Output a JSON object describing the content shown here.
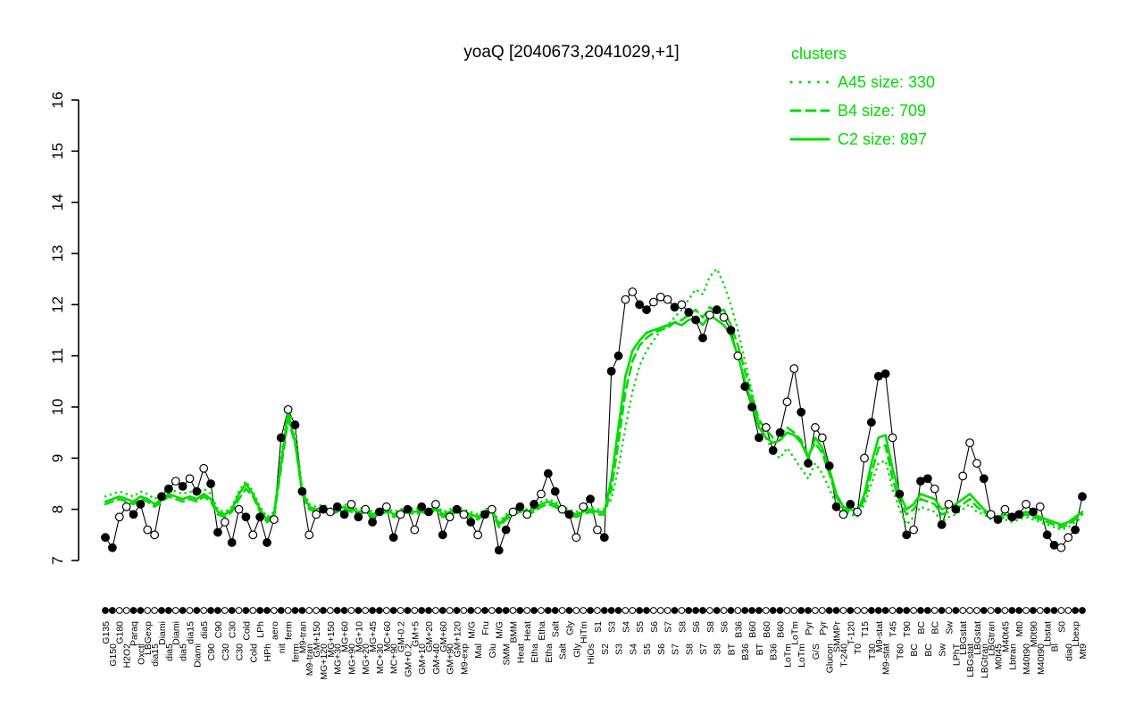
{
  "title": "yoaQ [2040673,2041029,+1]",
  "legend": {
    "title": "clusters",
    "color": "#00dc00",
    "items": [
      {
        "label": "A45 size: 330",
        "style": "dotted"
      },
      {
        "label": "B4 size: 709",
        "style": "dashed"
      },
      {
        "label": "C2 size: 897",
        "style": "solid"
      }
    ]
  },
  "chart_data": {
    "type": "line",
    "title": "yoaQ [2040673,2041029,+1]",
    "xlabel": "",
    "ylabel": "",
    "ylim": [
      7,
      16
    ],
    "yticks": [
      7,
      8,
      9,
      10,
      11,
      12,
      13,
      14,
      15,
      16
    ],
    "grid": false,
    "legend_position": "top-right",
    "colors": {
      "cluster": "#00dc00",
      "points": "#000000"
    },
    "categories": [
      "G135",
      "G150",
      "G180",
      "H2O2",
      "Paraq",
      "Oxctl",
      "LBGexp",
      "dia15",
      "Diami",
      "dia5",
      "Diami",
      "dia5",
      "dia15",
      "Diami",
      "dia5",
      "C90",
      "C90",
      "C30",
      "C30",
      "C30",
      "Cold",
      "Cold",
      "LPh",
      "HPh",
      "aero",
      "nit",
      "ferm",
      "ferm",
      "M9-tran",
      "M9-tran",
      "GM+150",
      "MG+120",
      "MG+150",
      "MG+30",
      "MG+60",
      "MG+90",
      "MG+10",
      "MG+20",
      "MG+45",
      "MC+30",
      "MC+60",
      "MC+90",
      "GM-0.2",
      "GM+0.2",
      "GM+5",
      "GM+10",
      "GM+20",
      "GM+40",
      "GM+60",
      "GM+90",
      "GM+120",
      "M9-exp",
      "M/G",
      "Mal",
      "Fru",
      "Glu",
      "M/G",
      "SMM",
      "BMM",
      "Heat",
      "Heat",
      "Etha",
      "Etha",
      "Etha",
      "Salt",
      "Salt",
      "Gly",
      "Gly",
      "HiTm",
      "HiOs",
      "S1",
      "S2",
      "S3",
      "S3",
      "S4",
      "S4",
      "S5",
      "S5",
      "S6",
      "S6",
      "S7",
      "S7",
      "S8",
      "S8",
      "S6",
      "S7",
      "S8",
      "S8",
      "S6",
      "BT",
      "B36",
      "B36",
      "B60",
      "BT",
      "B60",
      "B36",
      "B60",
      "LoTm",
      "LoTm",
      "LoTm",
      "Pyr",
      "G/S",
      "Pyr",
      "Glucon",
      "SMMPr",
      "T-240",
      "T-120",
      "T0",
      "T15",
      "T30",
      "M9-stat",
      "M9-stat",
      "T45",
      "T60",
      "T90",
      "BC",
      "BC",
      "BC",
      "BC",
      "Sw",
      "Sw",
      "LPhT",
      "LBGstat",
      "LBGstat",
      "LBGstat",
      "LBGtran",
      "LBGtran",
      "M0t45",
      "M40t45",
      "Lbtran",
      "Mt0",
      "M40t90",
      "M0t90",
      "M40t90",
      "Lbstat",
      "Bl",
      "S0",
      "dia0",
      "Lbexp",
      "Mt9"
    ],
    "points": {
      "name": "yoaQ expression",
      "expression": [
        7.45,
        7.25,
        7.85,
        8.05,
        7.9,
        8.1,
        7.6,
        7.5,
        8.25,
        8.4,
        8.55,
        8.45,
        8.6,
        8.35,
        8.8,
        8.5,
        7.55,
        7.75,
        7.35,
        8.0,
        7.85,
        7.5,
        7.85,
        7.35,
        7.8,
        9.4,
        9.95,
        9.65,
        8.35,
        7.5,
        7.9,
        8.0,
        7.95,
        8.05,
        7.9,
        8.1,
        7.85,
        8.0,
        7.75,
        7.95,
        8.05,
        7.45,
        7.9,
        8.0,
        7.6,
        8.05,
        7.95,
        8.1,
        7.5,
        7.85,
        8.0,
        7.9,
        7.75,
        7.5,
        7.9,
        8.0,
        7.2,
        7.6,
        7.95,
        8.05,
        7.9,
        8.1,
        8.3,
        8.7,
        8.35,
        8.0,
        7.9,
        7.45,
        8.05,
        8.2,
        7.6,
        7.45,
        10.7,
        11.0,
        12.1,
        12.25,
        12.0,
        11.9,
        12.05,
        12.15,
        12.1,
        11.95,
        12.0,
        11.85,
        11.7,
        11.35,
        11.8,
        11.9,
        11.75,
        11.5,
        11.0,
        10.4,
        10.0,
        9.4,
        9.6,
        9.15,
        9.5,
        10.1,
        10.75,
        9.9,
        8.9,
        9.6,
        9.4,
        8.85,
        8.05,
        7.9,
        8.1,
        7.95,
        9.0,
        9.7,
        10.6,
        10.65,
        9.4,
        8.3,
        7.5,
        7.6,
        8.55,
        8.6,
        8.4,
        7.7,
        8.1,
        8.0,
        8.65,
        9.3,
        8.9,
        8.6,
        7.9,
        7.8,
        8.0,
        7.85,
        7.9,
        8.1,
        7.95,
        8.05,
        7.5,
        7.3,
        7.25,
        7.45,
        7.6,
        8.25
      ],
      "open": [
        0,
        0,
        1,
        1,
        0,
        0,
        1,
        1,
        0,
        0,
        1,
        0,
        1,
        0,
        1,
        0,
        0,
        1,
        0,
        1,
        0,
        1,
        0,
        0,
        1,
        0,
        1,
        0,
        0,
        1,
        1,
        0,
        1,
        0,
        0,
        1,
        0,
        1,
        0,
        0,
        1,
        0,
        1,
        0,
        1,
        0,
        0,
        1,
        0,
        1,
        0,
        1,
        0,
        1,
        0,
        1,
        0,
        0,
        1,
        0,
        1,
        0,
        1,
        0,
        0,
        1,
        0,
        1,
        1,
        0,
        1,
        0,
        0,
        0,
        1,
        1,
        0,
        0,
        1,
        1,
        1,
        0,
        1,
        0,
        0,
        0,
        1,
        0,
        1,
        0,
        1,
        0,
        0,
        0,
        1,
        0,
        0,
        1,
        1,
        0,
        0,
        1,
        1,
        0,
        0,
        1,
        0,
        1,
        1,
        0,
        0,
        0,
        1,
        0,
        0,
        1,
        0,
        0,
        1,
        0,
        1,
        0,
        1,
        1,
        1,
        0,
        1,
        0,
        1,
        0,
        0,
        1,
        0,
        1,
        0,
        0,
        1,
        1,
        0,
        0
      ]
    },
    "series": [
      {
        "name": "A45 size: 330",
        "style": "dotted",
        "size": 330,
        "values": [
          8.25,
          8.3,
          8.35,
          8.3,
          8.25,
          8.35,
          8.3,
          8.2,
          8.3,
          8.4,
          8.35,
          8.3,
          8.35,
          8.3,
          8.4,
          8.3,
          8.0,
          7.95,
          8.05,
          8.35,
          8.55,
          8.35,
          8.05,
          7.85,
          7.95,
          9.0,
          10.0,
          9.5,
          8.45,
          8.1,
          8.05,
          8.1,
          8.0,
          8.05,
          8.1,
          8.05,
          8.0,
          8.05,
          7.95,
          8.0,
          8.05,
          7.95,
          8.0,
          8.05,
          8.0,
          8.05,
          8.0,
          8.1,
          7.95,
          8.0,
          8.05,
          8.0,
          7.95,
          7.9,
          8.0,
          8.05,
          7.75,
          7.9,
          8.0,
          8.05,
          8.0,
          8.05,
          8.15,
          8.2,
          8.15,
          8.05,
          8.0,
          7.95,
          8.0,
          8.05,
          8.0,
          8.0,
          8.2,
          8.8,
          9.6,
          10.3,
          10.8,
          11.1,
          11.3,
          11.5,
          11.6,
          11.75,
          11.9,
          12.1,
          12.3,
          12.2,
          12.55,
          12.7,
          12.4,
          12.0,
          11.5,
          10.9,
          10.3,
          9.7,
          9.4,
          9.1,
          9.0,
          9.2,
          9.0,
          8.8,
          8.6,
          8.9,
          8.7,
          8.4,
          8.1,
          7.95,
          7.9,
          7.85,
          8.1,
          8.5,
          8.9,
          8.95,
          8.4,
          8.0,
          7.7,
          7.85,
          8.05,
          8.0,
          7.95,
          7.75,
          7.85,
          7.9,
          8.0,
          8.1,
          7.95,
          7.9,
          7.8,
          7.75,
          7.8,
          7.75,
          7.8,
          7.85,
          7.8,
          7.75,
          7.7,
          7.65,
          7.6,
          7.65,
          7.75,
          7.85
        ]
      },
      {
        "name": "B4 size: 709",
        "style": "dashed",
        "size": 709,
        "values": [
          8.1,
          8.15,
          8.2,
          8.15,
          8.1,
          8.2,
          8.15,
          8.05,
          8.15,
          8.25,
          8.2,
          8.15,
          8.2,
          8.15,
          8.25,
          8.15,
          7.9,
          7.85,
          7.95,
          8.2,
          8.4,
          8.25,
          7.95,
          7.75,
          7.85,
          8.8,
          9.75,
          9.3,
          8.3,
          8.0,
          7.95,
          8.0,
          7.9,
          7.95,
          8.0,
          7.95,
          7.9,
          7.95,
          7.85,
          7.9,
          7.95,
          7.85,
          7.9,
          7.95,
          7.9,
          7.95,
          7.9,
          8.0,
          7.85,
          7.9,
          7.95,
          7.9,
          7.85,
          7.8,
          7.9,
          7.95,
          7.65,
          7.8,
          7.9,
          7.95,
          7.9,
          7.95,
          8.05,
          8.1,
          8.05,
          7.95,
          7.9,
          7.85,
          7.9,
          7.95,
          7.9,
          7.9,
          8.4,
          9.3,
          10.3,
          10.9,
          11.2,
          11.35,
          11.45,
          11.5,
          11.55,
          11.65,
          11.7,
          11.8,
          11.9,
          11.75,
          11.95,
          11.85,
          11.9,
          11.6,
          11.2,
          10.7,
          10.2,
          9.75,
          9.55,
          9.4,
          9.45,
          9.6,
          9.5,
          9.35,
          9.05,
          9.3,
          9.1,
          8.7,
          8.25,
          8.0,
          7.95,
          7.9,
          8.2,
          8.7,
          9.2,
          9.25,
          8.6,
          8.15,
          7.9,
          8.0,
          8.2,
          8.15,
          8.1,
          7.9,
          7.95,
          8.0,
          8.1,
          8.2,
          8.05,
          7.95,
          7.85,
          7.8,
          7.85,
          7.8,
          7.85,
          7.9,
          7.85,
          7.8,
          7.75,
          7.7,
          7.65,
          7.7,
          7.8,
          7.9
        ]
      },
      {
        "name": "C2 size: 897",
        "style": "solid",
        "size": 897,
        "values": [
          8.15,
          8.2,
          8.25,
          8.2,
          8.15,
          8.25,
          8.2,
          8.1,
          8.2,
          8.3,
          8.25,
          8.2,
          8.25,
          8.2,
          8.3,
          8.2,
          7.95,
          7.9,
          8.0,
          8.3,
          8.5,
          8.3,
          8.0,
          7.8,
          7.9,
          8.9,
          9.9,
          9.3,
          8.35,
          8.05,
          8.0,
          8.05,
          7.95,
          8.0,
          8.05,
          8.0,
          7.95,
          8.0,
          7.9,
          7.95,
          8.0,
          7.9,
          7.95,
          8.0,
          7.95,
          8.0,
          7.95,
          8.05,
          7.9,
          7.95,
          8.0,
          7.95,
          7.9,
          7.85,
          7.95,
          8.0,
          7.7,
          7.85,
          7.95,
          8.0,
          7.95,
          8.0,
          8.1,
          8.15,
          8.1,
          8.0,
          7.95,
          7.9,
          7.95,
          8.0,
          7.95,
          7.95,
          8.6,
          9.6,
          10.6,
          11.1,
          11.3,
          11.45,
          11.5,
          11.55,
          11.6,
          11.65,
          11.6,
          11.7,
          11.75,
          11.6,
          11.8,
          11.7,
          11.6,
          11.4,
          11.0,
          10.5,
          10.05,
          9.6,
          9.4,
          9.3,
          9.35,
          9.5,
          9.45,
          9.3,
          9.0,
          9.4,
          9.2,
          8.8,
          8.3,
          8.05,
          8.0,
          7.95,
          8.3,
          8.9,
          9.4,
          9.45,
          8.8,
          8.3,
          8.0,
          8.1,
          8.3,
          8.25,
          8.2,
          8.0,
          8.05,
          8.1,
          8.2,
          8.3,
          8.15,
          8.0,
          7.9,
          7.85,
          7.9,
          7.85,
          7.9,
          7.95,
          7.9,
          7.85,
          7.8,
          7.75,
          7.7,
          7.75,
          7.85,
          7.95
        ]
      }
    ]
  }
}
